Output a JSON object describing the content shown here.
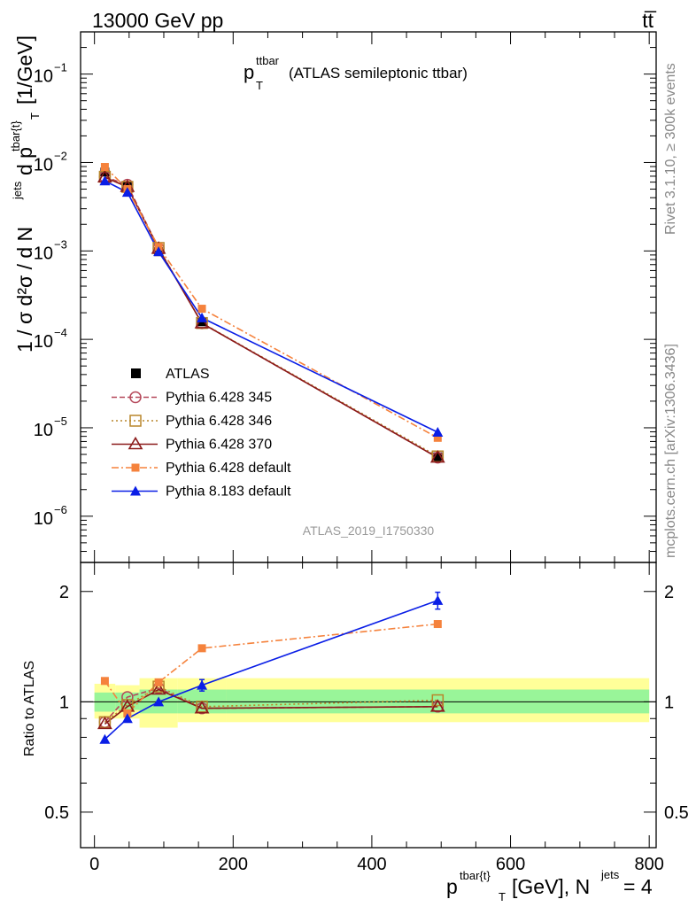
{
  "header": {
    "left": "13000 GeV pp",
    "right": "tt̅"
  },
  "side_labels": {
    "rivet": "Rivet 3.1.10, ≥ 300k events",
    "mcplots": "mcplots.cern.ch [arXiv:1306.3436]"
  },
  "chart_data": {
    "type": "line",
    "title": "p_T^ttbar (ATLAS semileptonic ttbar)",
    "title_main": "p",
    "title_sub": "T",
    "title_sup": "ttbar",
    "title_rest": "(ATLAS semileptonic ttbar)",
    "analysis_id": "ATLAS_2019_I1750330",
    "xlabel": "p^{tbar{t}}_T [GeV], N^{jets} = 4",
    "xlabel_main": "p",
    "xlabel_sup": "tbar{t}",
    "xlabel_sub": "T",
    "xlabel_rest": "[GeV], N",
    "xlabel_jets": "jets",
    "xlabel_tail": "= 4",
    "ylabel": "1 / σ d²σ / d N^{jets} d p^{tbar{t}}_T [1/GeV]",
    "ylabel_text": "1 / σ d²σ / d N",
    "ylabel_jets": "jets",
    "ylabel_dp": "d p",
    "ylabel_tbar": "tbar{t}",
    "ylabel_T": "T",
    "ylabel_unit": "[1/GeV]",
    "ratio_ylabel": "Ratio to ATLAS",
    "xlim": [
      -20,
      810
    ],
    "ylim": [
      3e-07,
      0.3
    ],
    "ratio_ylim": [
      0.4,
      2.4
    ],
    "x_ticks": [
      {
        "value": 0,
        "label": "0"
      },
      {
        "value": 200,
        "label": "200"
      },
      {
        "value": 400,
        "label": "400"
      },
      {
        "value": 600,
        "label": "600"
      },
      {
        "value": 800,
        "label": "800"
      }
    ],
    "y_ticks": [
      {
        "value": 1e-06,
        "base": "10",
        "exp": "−6"
      },
      {
        "value": 1e-05,
        "base": "10",
        "exp": "−5"
      },
      {
        "value": 0.0001,
        "base": "10",
        "exp": "−4"
      },
      {
        "value": 0.001,
        "base": "10",
        "exp": "−3"
      },
      {
        "value": 0.01,
        "base": "10",
        "exp": "−2"
      },
      {
        "value": 0.1,
        "base": "10",
        "exp": "−1"
      }
    ],
    "ratio_ticks": [
      {
        "value": 0.5,
        "label": "0.5"
      },
      {
        "value": 1,
        "label": "1"
      },
      {
        "value": 2,
        "label": "2"
      }
    ],
    "bins": [
      {
        "lo": 0,
        "hi": 30
      },
      {
        "lo": 30,
        "hi": 65
      },
      {
        "lo": 65,
        "hi": 120
      },
      {
        "lo": 120,
        "hi": 190
      },
      {
        "lo": 190,
        "hi": 800
      }
    ],
    "x": [
      15,
      47.5,
      92.5,
      155,
      495
    ],
    "reference": {
      "name": "ATLAS",
      "values": [
        0.0078,
        0.0054,
        0.00098,
        0.000158,
        4.7e-06
      ],
      "band_inner": [
        [
          0.94,
          1.06
        ],
        [
          0.95,
          1.06
        ],
        [
          0.93,
          1.08
        ],
        [
          0.93,
          1.08
        ],
        [
          0.93,
          1.08
        ]
      ],
      "band_outer": [
        [
          0.9,
          1.12
        ],
        [
          0.9,
          1.11
        ],
        [
          0.85,
          1.16
        ],
        [
          0.88,
          1.16
        ],
        [
          0.88,
          1.16
        ]
      ]
    },
    "series": [
      {
        "name": "Pythia 6.428 345",
        "color": "#b5485a",
        "dash": "6,3",
        "marker": "circle-open",
        "values": [
          0.0069,
          0.0056,
          0.00107,
          0.000152,
          4.6e-06
        ],
        "ratio": [
          0.88,
          1.03,
          1.09,
          0.96,
          0.97
        ]
      },
      {
        "name": "Pythia 6.428 346",
        "color": "#b8862b",
        "dash": "2,3",
        "marker": "square-open",
        "values": [
          0.0069,
          0.0053,
          0.00108,
          0.000153,
          4.75e-06
        ],
        "ratio": [
          0.88,
          0.98,
          1.1,
          0.97,
          1.01
        ]
      },
      {
        "name": "Pythia 6.428 370",
        "color": "#8b1a1a",
        "dash": "",
        "marker": "triangle-open",
        "values": [
          0.0068,
          0.0053,
          0.00106,
          0.000152,
          4.6e-06
        ],
        "ratio": [
          0.87,
          0.97,
          1.08,
          0.96,
          0.97
        ]
      },
      {
        "name": "Pythia 6.428 default",
        "color": "#f5823c",
        "dash": "8,3,2,3",
        "marker": "square-filled",
        "values": [
          0.0089,
          0.005,
          0.00111,
          0.000222,
          7.7e-06
        ],
        "ratio": [
          1.14,
          0.93,
          1.13,
          1.4,
          1.63
        ]
      },
      {
        "name": "Pythia 8.183 default",
        "color": "#0a1ee6",
        "dash": "",
        "marker": "triangle-filled",
        "values": [
          0.0062,
          0.0046,
          0.00098,
          0.000175,
          8.9e-06
        ],
        "ratio": [
          0.79,
          0.9,
          1.0,
          1.11,
          1.89
        ],
        "ratio_err": [
          0,
          0,
          0,
          0.04,
          0.1
        ]
      }
    ]
  }
}
